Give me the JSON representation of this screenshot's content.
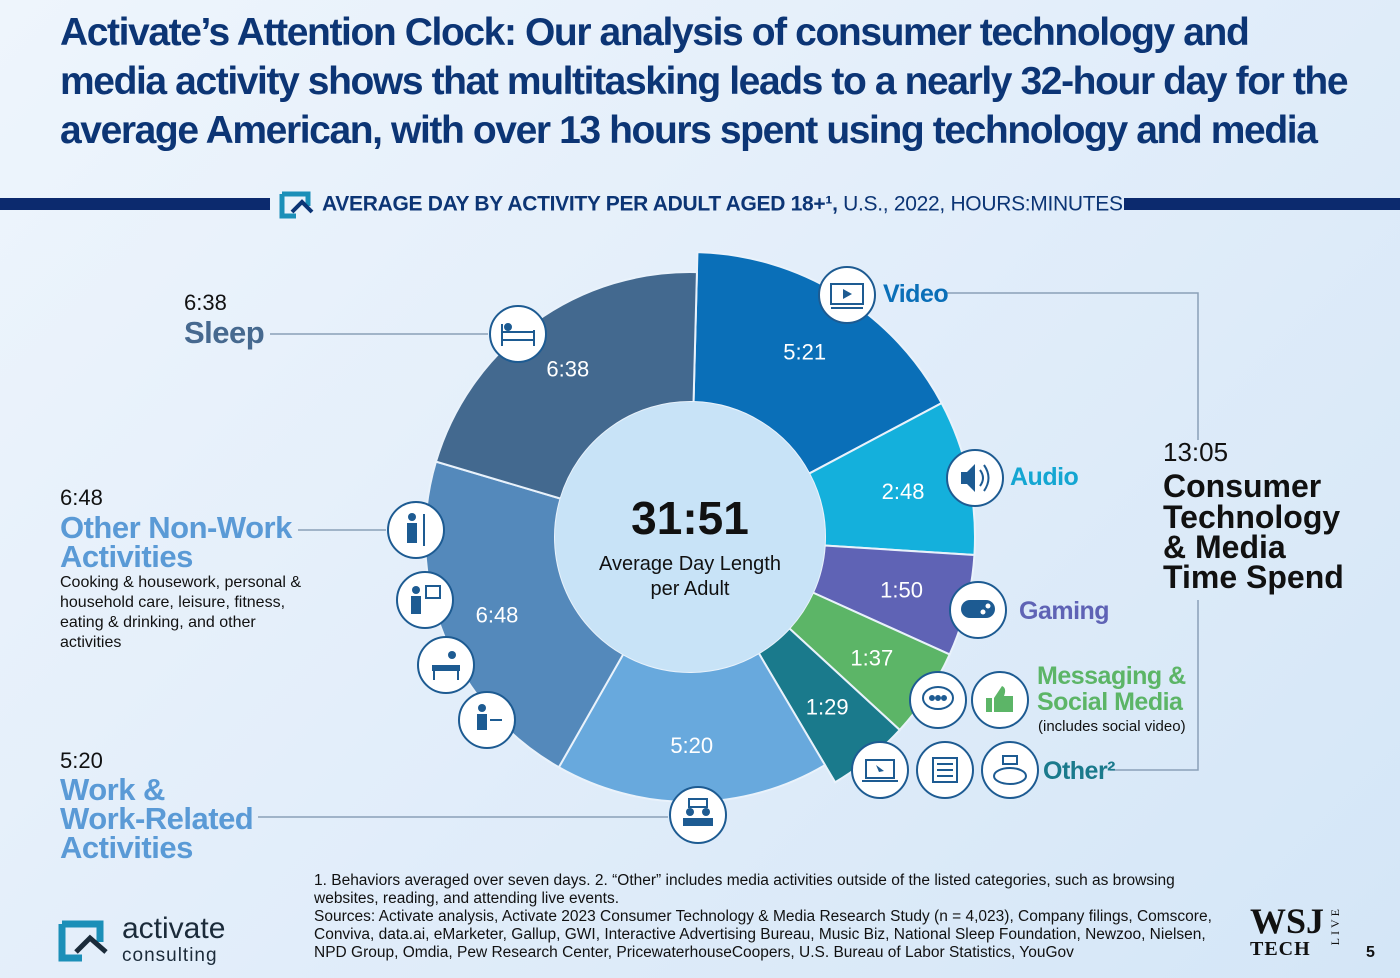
{
  "headline": "Activate’s Attention Clock: Our analysis of consumer technology and media activity shows that multitasking leads to a nearly 32-hour day for the average American, with over 13 hours spent using technology and media",
  "subtitle": {
    "bold": "AVERAGE DAY BY ACTIVITY PER ADULT AGED 18+¹,",
    "rest": " U.S., 2022, HOURS:MINUTES"
  },
  "chart_data": {
    "type": "pie",
    "donut": true,
    "title": "AVERAGE DAY BY ACTIVITY PER ADULT AGED 18+¹, U.S., 2022, HOURS:MINUTES",
    "center_value": "31:51",
    "center_label": "Average Day Length per Adult",
    "unit": "hours:minutes",
    "slices": [
      {
        "name": "Video",
        "label": "5:21",
        "minutes": 321,
        "color": "#0a6fb8",
        "group": "media"
      },
      {
        "name": "Audio",
        "label": "2:48",
        "minutes": 168,
        "color": "#14b0dc",
        "group": "media"
      },
      {
        "name": "Gaming",
        "label": "1:50",
        "minutes": 110,
        "color": "#5f63b5",
        "group": "media"
      },
      {
        "name": "Messaging & Social Media",
        "label": "1:37",
        "minutes": 97,
        "color": "#5cb567",
        "group": "media"
      },
      {
        "name": "Other²",
        "label": "1:29",
        "minutes": 89,
        "color": "#1a7a8c",
        "group": "media"
      },
      {
        "name": "Work & Work-Related Activities",
        "label": "5:20",
        "minutes": 320,
        "color": "#68a9dd",
        "group": "life"
      },
      {
        "name": "Other Non-Work Activities",
        "label": "6:48",
        "minutes": 408,
        "color": "#5489bb",
        "group": "life"
      },
      {
        "name": "Sleep",
        "label": "6:38",
        "minutes": 398,
        "color": "#43698f",
        "group": "life"
      }
    ]
  },
  "labels": {
    "sleep_time": "6:38",
    "sleep_name": "Sleep",
    "nonwork_time": "6:48",
    "nonwork_name_1": "Other Non-Work",
    "nonwork_name_2": "Activities",
    "nonwork_desc": "Cooking & housework, personal & household care, leisure, fitness, eating & drinking, and other activities",
    "work_time": "5:20",
    "work_name_1": "Work &",
    "work_name_2": "Work-Related",
    "work_name_3": "Activities",
    "video": "Video",
    "audio": "Audio",
    "gaming": "Gaming",
    "messaging_1": "Messaging &",
    "messaging_2": "Social Media",
    "messaging_note": "(includes social video)",
    "other": "Other²"
  },
  "media_total": {
    "time": "13:05",
    "line1": "Consumer",
    "line2": "Technology",
    "line3": "& Media",
    "line4": "Time Spend"
  },
  "colors": {
    "headline": "#0c3575",
    "icon_stroke": "#1d5b92",
    "video": "#0a6fb8",
    "audio": "#14b0dc",
    "gaming": "#5f63b5",
    "messaging": "#5cb567",
    "other": "#1a7a8c"
  },
  "icons": [
    "bed-icon",
    "video-icon",
    "audio-icon",
    "gamepad-icon",
    "chat-icon",
    "thumbs-up-icon",
    "laptop-icon",
    "newspaper-icon",
    "stadium-icon",
    "housework-icon",
    "family-icon",
    "care-icon",
    "eating-icon",
    "meeting-icon"
  ],
  "footnotes": {
    "line1": "1. Behaviors averaged over seven days.  2. “Other” includes media activities outside of the listed categories, such as browsing websites, reading, and attending live events.",
    "line2": "Sources: Activate analysis, Activate 2023 Consumer Technology & Media Research Study (n = 4,023), Company filings, Comscore, Conviva, data.ai, eMarketer, Gallup, GWI, Interactive Advertising Bureau, Music Biz, National Sleep Foundation, Newzoo, Nielsen, NPD Group, Omdia, Pew Research Center, PricewaterhouseCoopers, U.S. Bureau of Labor Statistics, YouGov"
  },
  "brand": {
    "name": "activate",
    "sub": "consulting"
  },
  "wsj": {
    "main": "WSJ",
    "tech": "TECH",
    "live": "LIVE"
  },
  "page_number": "5"
}
